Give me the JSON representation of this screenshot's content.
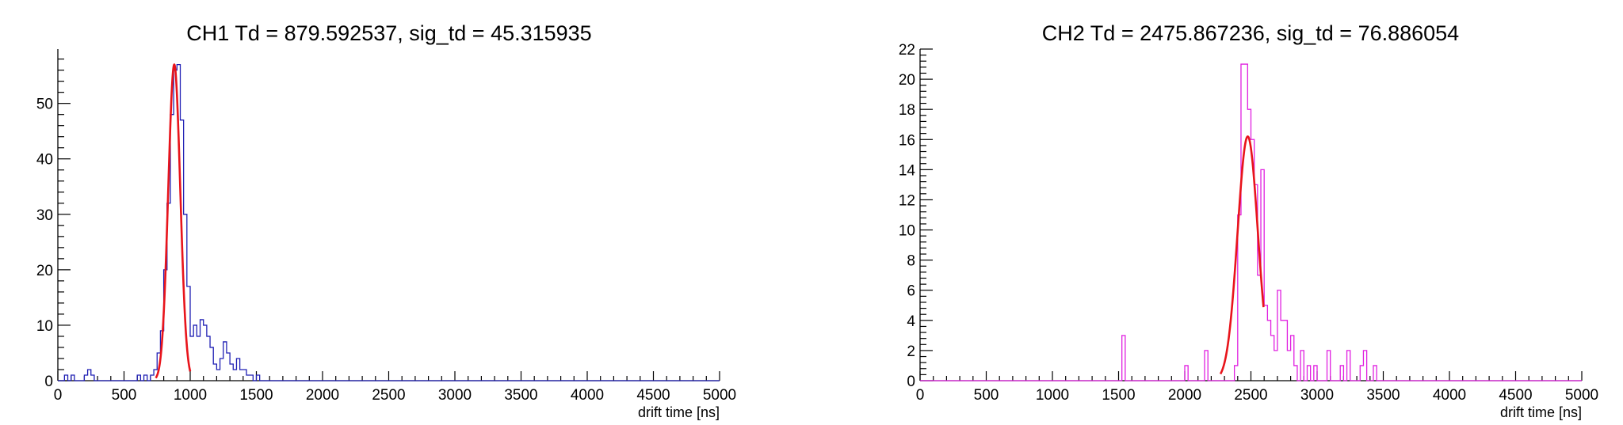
{
  "chart_data": [
    {
      "type": "histogram",
      "title": "CH1 Td = 879.592537, sig_td = 45.315935",
      "xlabel": "drift time [ns]",
      "ylabel": "",
      "xlim": [
        0,
        5000
      ],
      "ylim": [
        0,
        59.8
      ],
      "xticks": [
        0,
        500,
        1000,
        1500,
        2000,
        2500,
        3000,
        3500,
        4000,
        4500,
        5000
      ],
      "yticks": [
        0,
        10,
        20,
        30,
        40,
        50
      ],
      "grid": false,
      "legend": "none",
      "series": [
        {
          "kind": "step",
          "color": "#1f1fb4",
          "bins": [
            [
              50,
              1
            ],
            [
              100,
              1
            ],
            [
              200,
              1
            ],
            [
              225,
              2
            ],
            [
              250,
              1
            ],
            [
              600,
              1
            ],
            [
              650,
              1
            ],
            [
              700,
              1
            ],
            [
              725,
              2
            ],
            [
              750,
              5
            ],
            [
              775,
              9
            ],
            [
              800,
              20
            ],
            [
              825,
              32
            ],
            [
              850,
              48
            ],
            [
              875,
              56
            ],
            [
              900,
              57
            ],
            [
              925,
              47
            ],
            [
              950,
              30
            ],
            [
              975,
              17
            ],
            [
              1000,
              8
            ],
            [
              1025,
              10
            ],
            [
              1050,
              8
            ],
            [
              1075,
              11
            ],
            [
              1100,
              10
            ],
            [
              1125,
              8
            ],
            [
              1150,
              6
            ],
            [
              1175,
              3
            ],
            [
              1200,
              2
            ],
            [
              1225,
              4
            ],
            [
              1250,
              7
            ],
            [
              1275,
              5
            ],
            [
              1300,
              3
            ],
            [
              1325,
              2
            ],
            [
              1350,
              4
            ],
            [
              1375,
              2
            ],
            [
              1400,
              2
            ],
            [
              1425,
              1
            ],
            [
              1450,
              1
            ],
            [
              1500,
              1
            ]
          ],
          "bin_width": 25
        },
        {
          "kind": "gaussian_fit",
          "color": "#e8141b",
          "amplitude": 57,
          "mean": 879.592537,
          "sigma": 45.315935,
          "range": [
            740,
            1000
          ]
        }
      ]
    },
    {
      "type": "histogram",
      "title": "CH2 Td = 2475.867236, sig_td = 76.886054",
      "xlabel": "drift time [ns]",
      "ylabel": "",
      "xlim": [
        0,
        5000
      ],
      "ylim": [
        0,
        22
      ],
      "xticks": [
        0,
        500,
        1000,
        1500,
        2000,
        2500,
        3000,
        3500,
        4000,
        4500,
        5000
      ],
      "yticks": [
        0,
        2,
        4,
        6,
        8,
        10,
        12,
        14,
        16,
        18,
        20,
        22
      ],
      "grid": false,
      "legend": "none",
      "series": [
        {
          "kind": "step",
          "color": "#e020e0",
          "bins": [
            [
              1525,
              3
            ],
            [
              2000,
              1
            ],
            [
              2150,
              2
            ],
            [
              2375,
              1
            ],
            [
              2400,
              11
            ],
            [
              2425,
              21
            ],
            [
              2450,
              21
            ],
            [
              2475,
              18
            ],
            [
              2500,
              16
            ],
            [
              2525,
              13
            ],
            [
              2550,
              7
            ],
            [
              2575,
              14
            ],
            [
              2600,
              5
            ],
            [
              2625,
              4
            ],
            [
              2650,
              3
            ],
            [
              2675,
              2
            ],
            [
              2700,
              6
            ],
            [
              2725,
              4
            ],
            [
              2750,
              4
            ],
            [
              2775,
              2
            ],
            [
              2800,
              3
            ],
            [
              2825,
              1
            ],
            [
              2875,
              2
            ],
            [
              2925,
              1
            ],
            [
              2975,
              1
            ],
            [
              3075,
              2
            ],
            [
              3175,
              1
            ],
            [
              3225,
              2
            ],
            [
              3325,
              1
            ],
            [
              3350,
              2
            ],
            [
              3425,
              1
            ]
          ],
          "bin_width": 25
        },
        {
          "kind": "gaussian_fit",
          "color": "#e8141b",
          "amplitude": 16.2,
          "mean": 2475.867236,
          "sigma": 76.886054,
          "range": [
            2270,
            2595
          ]
        }
      ]
    }
  ]
}
